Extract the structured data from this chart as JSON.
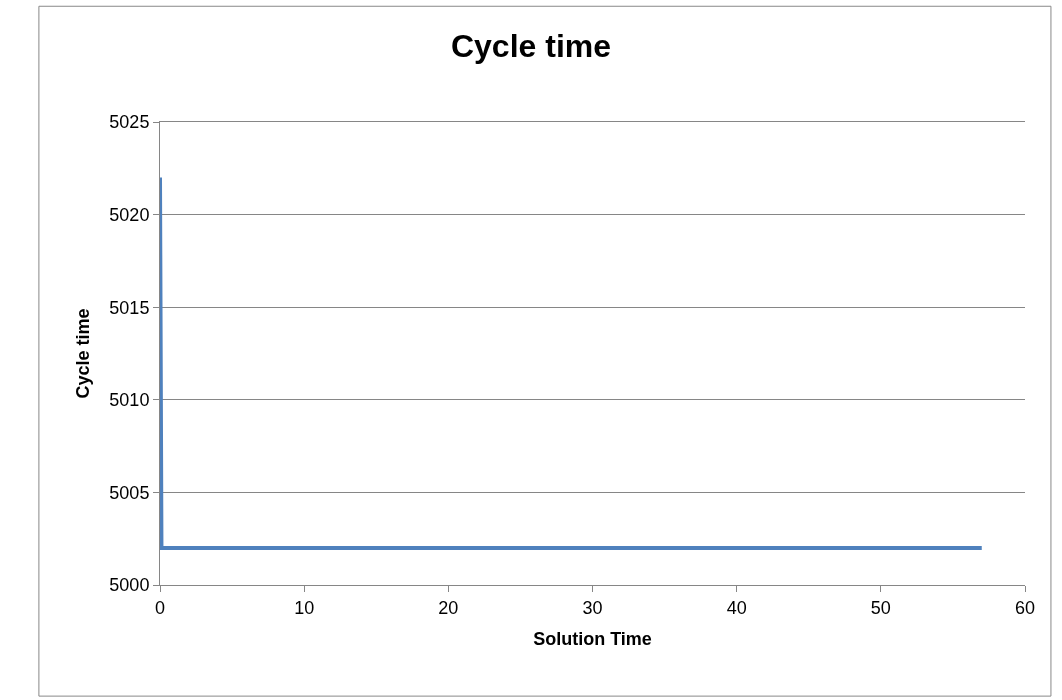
{
  "chart_data": {
    "type": "line",
    "title": "Cycle time",
    "xlabel": "Solution Time",
    "ylabel": "Cycle time",
    "x": [
      0,
      0.1,
      57
    ],
    "series": [
      {
        "color": "#4f81bd",
        "values": [
          5022,
          5002,
          5002
        ]
      }
    ],
    "xlim": [
      0,
      60
    ],
    "xticks": [
      0,
      10,
      20,
      30,
      40,
      50,
      60
    ],
    "ylim": [
      5000,
      5025
    ],
    "yticks": [
      5000,
      5005,
      5010,
      5015,
      5020,
      5025
    ],
    "grid": "y",
    "marker": "none",
    "line_style": "solid"
  }
}
